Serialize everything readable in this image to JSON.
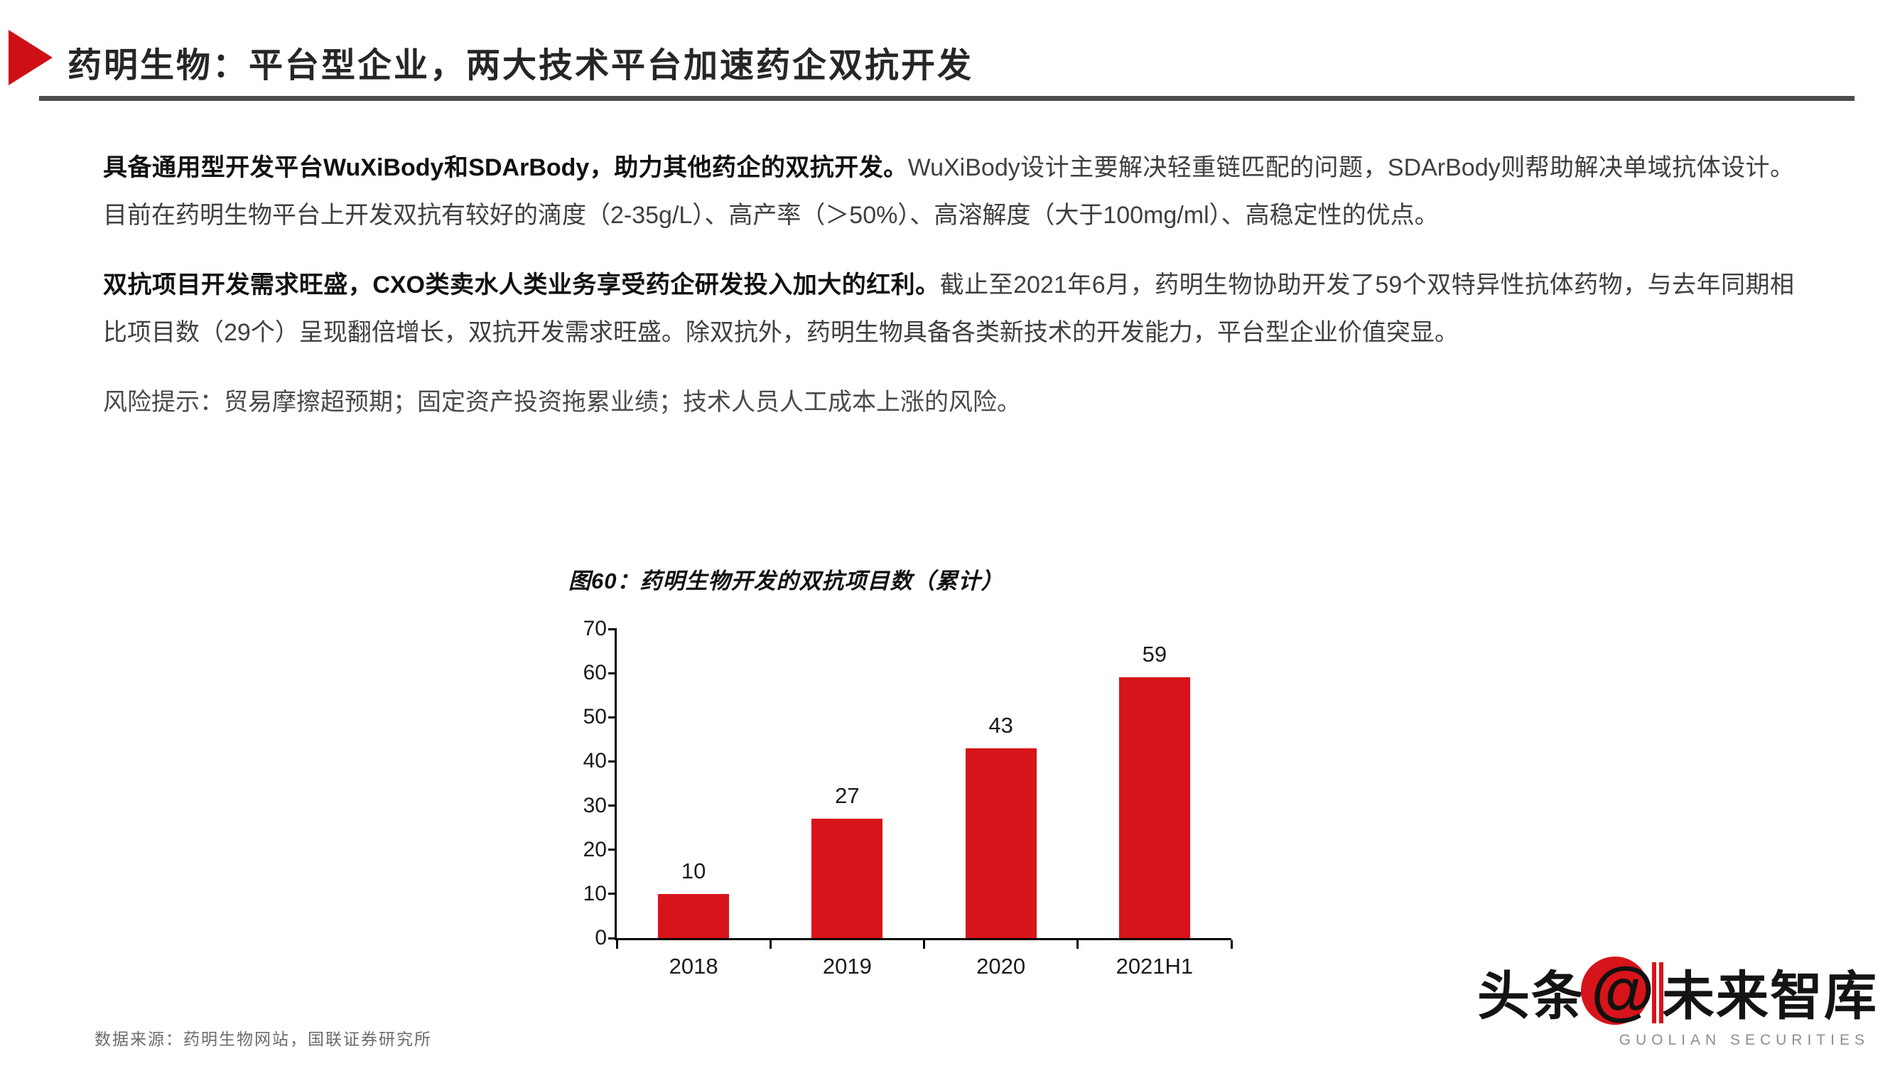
{
  "header": {
    "title": "药明生物：平台型企业，两大技术平台加速药企双抗开发"
  },
  "paragraphs": [
    {
      "bold": "具备通用型开发平台WuXiBody和SDArBody，助力其他药企的双抗开发。",
      "normal": "WuXiBody设计主要解决轻重链匹配的问题，SDArBody则帮助解决单域抗体设计。目前在药明生物平台上开发双抗有较好的滴度（2-35g/L）、高产率（＞50%）、高溶解度（大于100mg/ml）、高稳定性的优点。"
    },
    {
      "bold": "双抗项目开发需求旺盛，CXO类卖水人类业务享受药企研发投入加大的红利。",
      "normal": "截止至2021年6月，药明生物协助开发了59个双特异性抗体药物，与去年同期相比项目数（29个）呈现翻倍增长，双抗开发需求旺盛。除双抗外，药明生物具备各类新技术的开发能力，平台型企业价值突显。"
    },
    {
      "bold": "",
      "normal": "风险提示：贸易摩擦超预期；固定资产投资拖累业绩；技术人员人工成本上涨的风险。"
    }
  ],
  "chart_data": {
    "type": "bar",
    "title": "图60：药明生物开发的双抗项目数（累计）",
    "categories": [
      "2018",
      "2019",
      "2020",
      "2021H1"
    ],
    "values": [
      10,
      27,
      43,
      59
    ],
    "xlabel": "",
    "ylabel": "",
    "ylim": [
      0,
      70
    ],
    "ytick_step": 10,
    "grid": false,
    "legend": "none",
    "bar_color": "#d7141a",
    "data_label_color": "#1a1a1a"
  },
  "footer": {
    "source": "数据来源：药明生物网站，国联证券研究所"
  },
  "watermark": {
    "prefix": "头条",
    "at": "@",
    "suffix": "未来智库",
    "subtext": "GUOLIAN SECURITIES"
  },
  "colors": {
    "accent_red": "#d7141a",
    "title_rule_gray": "#4d4d4d",
    "body_text": "#3f3f3f",
    "bold_text": "#111111",
    "source_text": "#6b6b6b"
  }
}
